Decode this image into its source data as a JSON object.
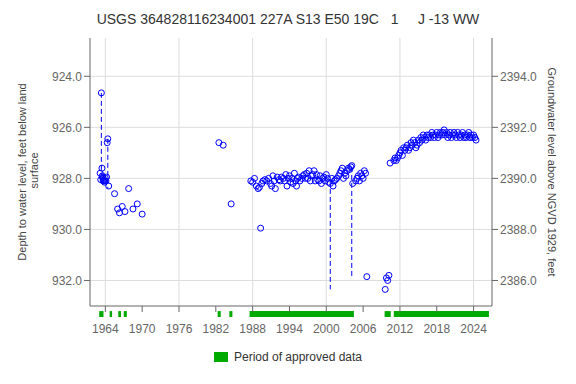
{
  "chart_data": {
    "type": "scatter",
    "title": "USGS 364828116234001 227A S13 E50 19C   1     J -13 WW",
    "y_label": "Depth to water level, feet below land\n surface",
    "y2_label": "Groundwater level above NGVD 1929, feet",
    "x": [
      1963.15,
      1963.25,
      1963.35,
      1963.45,
      1963.5,
      1963.55,
      1963.6,
      1963.65,
      1963.72,
      1963.8,
      1963.88,
      1964.0,
      1964.1,
      1964.2,
      1964.3,
      1964.4,
      1964.55,
      1965.5,
      1966.0,
      1966.3,
      1966.75,
      1967.2,
      1967.8,
      1968.5,
      1969.2,
      1970.0,
      1982.5,
      1983.2,
      1984.5,
      1987.7,
      1988.0,
      1988.3,
      1988.6,
      1988.9,
      1989.1,
      1989.3,
      1989.5,
      1989.7,
      1990.0,
      1990.3,
      1990.6,
      1990.9,
      1991.1,
      1991.3,
      1991.5,
      1991.7,
      1992.0,
      1992.3,
      1992.5,
      1992.7,
      1993.0,
      1993.2,
      1993.4,
      1993.6,
      1993.8,
      1994.0,
      1994.2,
      1994.4,
      1994.6,
      1994.8,
      1995.0,
      1995.15,
      1995.3,
      1995.5,
      1995.7,
      1996.0,
      1996.2,
      1996.4,
      1996.6,
      1996.8,
      1997.0,
      1997.2,
      1997.4,
      1997.6,
      1997.8,
      1998.0,
      1998.2,
      1998.4,
      1998.6,
      1998.8,
      1999.0,
      1999.2,
      1999.4,
      1999.6,
      1999.8,
      2000.0,
      2000.2,
      2000.4,
      2000.65,
      2000.9,
      2001.1,
      2001.3,
      2001.5,
      2001.7,
      2002.0,
      2002.2,
      2002.4,
      2002.6,
      2002.8,
      2003.0,
      2003.2,
      2003.4,
      2003.6,
      2003.8,
      2004.0,
      2004.15,
      2004.3,
      2004.8,
      2005.0,
      2005.2,
      2005.4,
      2005.6,
      2005.8,
      2006.0,
      2006.2,
      2006.4,
      2006.6,
      2009.6,
      2009.8,
      2010.0,
      2010.2,
      2010.4,
      2011.0,
      2011.2,
      2011.4,
      2011.6,
      2011.8,
      2012.0,
      2012.2,
      2012.4,
      2012.6,
      2012.8,
      2013.0,
      2013.2,
      2013.4,
      2013.6,
      2013.8,
      2014.0,
      2014.2,
      2014.4,
      2014.6,
      2014.8,
      2015.0,
      2015.2,
      2015.4,
      2015.6,
      2015.8,
      2016.0,
      2016.2,
      2016.4,
      2016.6,
      2016.8,
      2017.0,
      2017.2,
      2017.4,
      2017.6,
      2017.8,
      2018.0,
      2018.2,
      2018.4,
      2018.6,
      2018.8,
      2019.0,
      2019.2,
      2019.4,
      2019.6,
      2019.8,
      2020.0,
      2020.2,
      2020.4,
      2020.6,
      2020.8,
      2021.0,
      2021.2,
      2021.4,
      2021.6,
      2021.8,
      2022.0,
      2022.2,
      2022.4,
      2022.6,
      2022.8,
      2023.0,
      2023.2,
      2023.4,
      2023.6,
      2023.8,
      2024.0,
      2024.2,
      2024.4
    ],
    "series": [
      {
        "values": [
          927.8,
          928.05,
          924.65,
          927.6,
          927.9,
          927.95,
          928.0,
          928.1,
          928.05,
          928.1,
          928.15,
          928.0,
          928.1,
          927.95,
          926.6,
          926.45,
          928.3,
          928.6,
          929.2,
          929.35,
          929.1,
          929.3,
          928.4,
          929.2,
          929.0,
          929.4,
          926.6,
          926.7,
          929.0,
          928.1,
          928.15,
          928.0,
          928.3,
          928.4,
          928.35,
          929.95,
          928.2,
          928.1,
          928.05,
          928.1,
          928.0,
          928.2,
          928.3,
          927.9,
          928.1,
          928.4,
          927.95,
          928.05,
          928.1,
          927.95,
          928.0,
          928.1,
          927.85,
          928.3,
          928.0,
          927.9,
          928.15,
          928.0,
          928.2,
          927.8,
          928.1,
          928.3,
          928.0,
          927.95,
          928.1,
          928.0,
          927.9,
          927.85,
          928.0,
          927.8,
          928.0,
          927.7,
          928.1,
          927.9,
          927.85,
          927.7,
          928.1,
          927.85,
          928.05,
          928.1,
          927.9,
          928.2,
          928.0,
          927.95,
          928.1,
          927.85,
          928.0,
          928.15,
          928.2,
          928.0,
          928.3,
          928.1,
          928.05,
          928.0,
          927.9,
          927.8,
          927.7,
          927.6,
          928.0,
          927.8,
          927.9,
          927.7,
          927.6,
          927.65,
          927.55,
          927.5,
          928.2,
          928.1,
          928.0,
          927.9,
          928.1,
          927.8,
          927.9,
          928.0,
          927.7,
          927.8,
          931.85,
          932.35,
          931.9,
          932.0,
          931.8,
          927.4,
          927.3,
          927.2,
          927.3,
          927.2,
          927.1,
          927.0,
          926.9,
          927.1,
          926.8,
          926.9,
          926.8,
          926.7,
          926.9,
          926.8,
          926.6,
          926.7,
          926.5,
          926.6,
          926.8,
          926.7,
          926.5,
          926.6,
          926.4,
          926.5,
          926.3,
          926.4,
          926.5,
          926.3,
          926.4,
          926.3,
          926.4,
          926.2,
          926.3,
          926.4,
          926.3,
          926.2,
          926.4,
          926.3,
          926.2,
          926.3,
          926.2,
          926.1,
          926.3,
          926.2,
          926.4,
          926.3,
          926.2,
          926.4,
          926.3,
          926.2,
          926.3,
          926.4,
          926.2,
          926.3,
          926.4,
          926.3,
          926.2,
          926.4,
          926.3,
          926.4,
          926.3,
          926.2,
          926.4,
          926.3,
          926.4,
          926.3,
          926.4,
          926.5
        ],
        "color": "#0000ff",
        "marker": "circle"
      }
    ],
    "dashed_lines": {
      "color": "#0000ff",
      "line_style": "dashed",
      "lines": [
        {
          "x": [
            1963.35,
            1963.35
          ],
          "y": [
            924.65,
            927.85
          ]
        },
        {
          "x": [
            1964.4,
            1964.4
          ],
          "y": [
            926.45,
            928.4
          ]
        },
        {
          "x": [
            2000.65,
            2000.65
          ],
          "y": [
            928.1,
            932.35
          ]
        },
        {
          "x": [
            2004.15,
            2004.15
          ],
          "y": [
            927.55,
            931.9
          ]
        }
      ]
    },
    "approved_periods": {
      "name": "Period of approved data",
      "color": "#00aa00",
      "ranges": [
        [
          1963.0,
          1963.7
        ],
        [
          1964.7,
          1965.1
        ],
        [
          1966.1,
          1966.55
        ],
        [
          1967.0,
          1967.5
        ],
        [
          1982.3,
          1982.8
        ],
        [
          1984.2,
          1984.7
        ],
        [
          1987.5,
          2004.5
        ],
        [
          2009.5,
          2010.5
        ],
        [
          2011.0,
          2026.5
        ]
      ]
    },
    "xlim": [
      1961.5,
      2027.0
    ],
    "xticks": [
      1964,
      1970,
      1976,
      1982,
      1988,
      1994,
      2000,
      2006,
      2012,
      2018,
      2024
    ],
    "ylim": [
      933.0,
      922.5
    ],
    "yticks": [
      {
        "value": 924.0,
        "label": "924.0"
      },
      {
        "value": 926.0,
        "label": "926.0"
      },
      {
        "value": 928.0,
        "label": "928.0"
      },
      {
        "value": 930.0,
        "label": "930.0"
      },
      {
        "value": 932.0,
        "label": "932.0"
      }
    ],
    "y2lim": [
      2385.0,
      2395.5
    ],
    "y2ticks": [
      {
        "value": 2394.0,
        "label": "2394.0"
      },
      {
        "value": 2392.0,
        "label": "2392.0"
      },
      {
        "value": 2390.0,
        "label": "2390.0"
      },
      {
        "value": 2388.0,
        "label": "2388.0"
      },
      {
        "value": 2386.0,
        "label": "2386.0"
      }
    ],
    "grid": true,
    "legend": "bottom"
  }
}
